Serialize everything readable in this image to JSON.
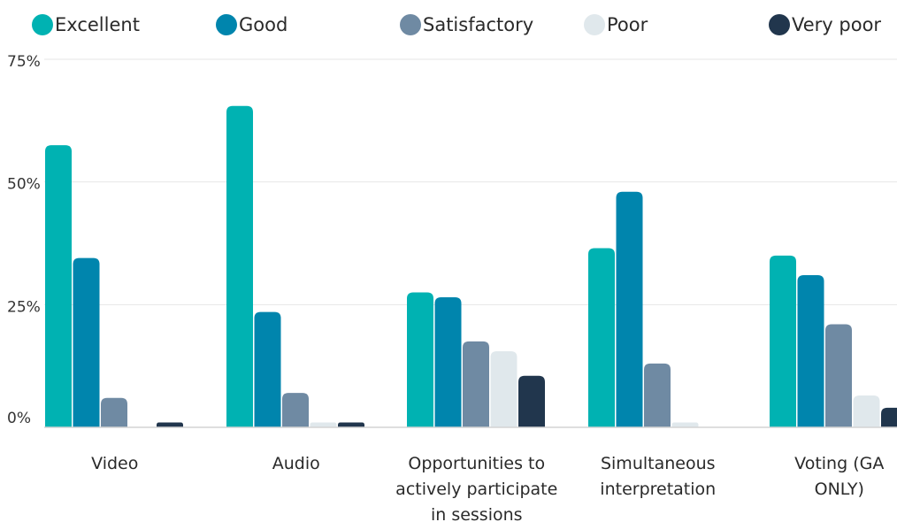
{
  "chart_data": {
    "type": "bar",
    "title": "",
    "xlabel": "",
    "ylabel": "",
    "ylim": [
      0,
      75
    ],
    "y_ticks": [
      "0%",
      "25%",
      "50%",
      "75%"
    ],
    "grid": true,
    "legend_position": "top",
    "categories": [
      [
        "Video"
      ],
      [
        "Audio"
      ],
      [
        "Opportunities to",
        "actively participate",
        "in sessions"
      ],
      [
        "Simultaneous",
        "interpretation"
      ],
      [
        "Voting (GA",
        "ONLY)"
      ]
    ],
    "series": [
      {
        "name": "Excellent",
        "color": "#00b2b2",
        "values": [
          57.5,
          65.5,
          27.5,
          36.5,
          35
        ]
      },
      {
        "name": "Good",
        "color": "#0085ad",
        "values": [
          34.5,
          23.5,
          26.5,
          48,
          31
        ]
      },
      {
        "name": "Satisfactory",
        "color": "#6f8aa3",
        "values": [
          6,
          7,
          17.5,
          13,
          21
        ]
      },
      {
        "name": "Poor",
        "color": "#e0e8ec",
        "values": [
          0,
          1,
          15.5,
          1,
          6.5
        ]
      },
      {
        "name": "Very poor",
        "color": "#21364d",
        "values": [
          1,
          1,
          10.5,
          0,
          4
        ]
      }
    ]
  }
}
